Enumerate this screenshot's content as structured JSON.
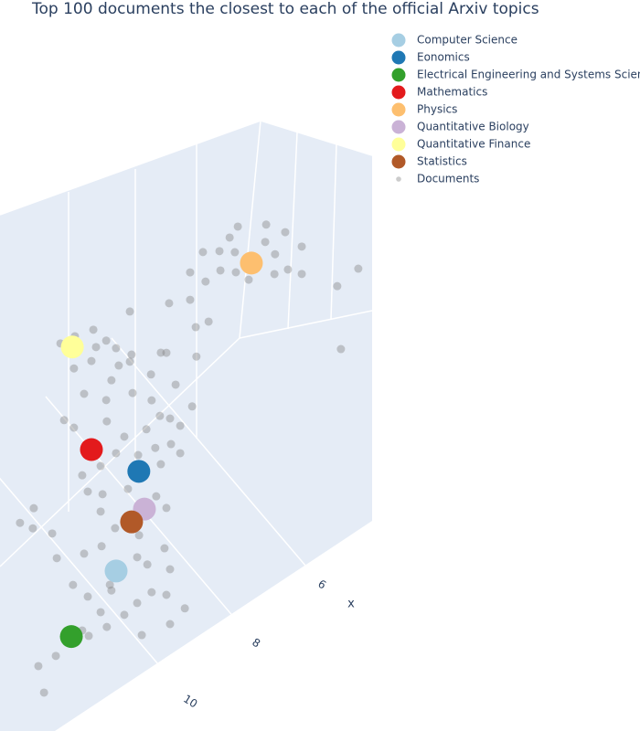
{
  "chart_data": {
    "type": "scatter3d",
    "title": "Top 100 documents the closest to each of the official Arxiv topics",
    "xlabel": "x",
    "xticks": [
      6,
      8,
      10
    ],
    "legend": "top-right",
    "series": [
      {
        "name": "Computer Science",
        "color": "#a6cee3",
        "x": [
          12.25
        ],
        "y": [
          0
        ],
        "z": [
          7.17
        ]
      },
      {
        "name": "Eonomics",
        "color": "#1f78b4",
        "x": [
          11.56
        ],
        "y": [
          0
        ],
        "z": [
          10.07
        ]
      },
      {
        "name": "Electrical Engineering and Systems Science",
        "color": "#33a02c",
        "x": [
          13.61
        ],
        "y": [
          0
        ],
        "z": [
          6.23
        ]
      },
      {
        "name": "Mathematics",
        "color": "#e31a1c",
        "x": [
          13.0
        ],
        "y": [
          0
        ],
        "z": [
          12.4
        ]
      },
      {
        "name": "Physics",
        "color": "#fdbf6f",
        "x": [
          8.14
        ],
        "y": [
          0
        ],
        "z": [
          14.02
        ]
      },
      {
        "name": "Quantitative Biology",
        "color": "#cab2d6",
        "x": [
          11.39
        ],
        "y": [
          0
        ],
        "z": [
          8.51
        ]
      },
      {
        "name": "Quantitative Finance",
        "color": "#ffff99",
        "x": [
          13.58
        ],
        "y": [
          0
        ],
        "z": [
          16.76
        ]
      },
      {
        "name": "Statistics",
        "color": "#b15928",
        "x": [
          11.78
        ],
        "y": [
          0
        ],
        "z": [
          8.46
        ]
      },
      {
        "name": "Documents",
        "color": "#808080",
        "x": [
          9.11,
          8.69,
          8.33,
          7.72,
          7.31,
          6.89,
          6.61,
          8.5,
          8.0,
          7.44,
          8.97,
          9.39,
          7.03,
          9.89,
          9.31,
          6.61,
          7.58,
          8.42,
          10.64,
          9.89,
          11.61,
          9.44,
          9.72,
          10.5,
          9.81,
          5.42,
          4.67,
          5.42,
          13.83,
          13.28,
          12.86,
          12.44,
          12.03,
          13.0,
          13.42,
          12.72,
          12.17,
          11.67,
          11.61,
          11.19,
          10.78,
          12.17,
          11.75,
          11.06,
          10.22,
          9.94,
          12.44,
          13.0,
          10.92,
          10.5,
          10.08,
          11.33,
          11.89,
          12.31,
          13.83,
          13.42,
          10.36,
          11.06,
          11.47,
          12.03,
          12.72,
          10.78,
          10.08,
          13.28,
          13.0,
          12.44,
          11.89,
          10.92,
          10.5,
          12.72,
          12.17,
          11.33,
          10.78,
          12.58,
          13.0,
          11.61,
          10.5,
          13.83,
          12.44,
          11.19,
          14.53,
          15.17,
          14.67,
          13.97,
          13.56,
          13.0,
          12.17,
          11.61,
          11.06,
          10.5,
          12.72,
          11.89,
          12.31,
          13.28,
          10.5,
          9.94,
          11.47,
          13.97,
          14.39,
          14.44,
          13.56,
          12.86
        ],
        "y": [
          0,
          0.5,
          1,
          0,
          0.5,
          1,
          0,
          0.5,
          1,
          0,
          0.5,
          1,
          0,
          0.5,
          1,
          0,
          0.5,
          1,
          0,
          0.5,
          1,
          0,
          0.5,
          1,
          0,
          0.5,
          1,
          0,
          0.5,
          1,
          0,
          0.5,
          1,
          0,
          0.5,
          1,
          0,
          0.5,
          1,
          0,
          0.5,
          1,
          0,
          0.5,
          1,
          0,
          0.5,
          1,
          0,
          0.5,
          1,
          0,
          0.5,
          1,
          0,
          0.5,
          1,
          0,
          0.5,
          1,
          0,
          0.5,
          1,
          0,
          0.5,
          1,
          0,
          0.5,
          1,
          0,
          0.5,
          1,
          0,
          0.5,
          1,
          0,
          0.5,
          1,
          0,
          0.5,
          1,
          0,
          0.5,
          1,
          0,
          0.5,
          1,
          0,
          0.5,
          1,
          0,
          0.5,
          1,
          0,
          0.5,
          1,
          0,
          0.5,
          1,
          0,
          0.5,
          1
        ],
        "z": [
          15.49,
          15.47,
          15.42,
          14.34,
          13.39,
          13.68,
          12.99,
          14.0,
          13.13,
          12.87,
          14.57,
          15.62,
          12.6,
          15.48,
          14.46,
          11.99,
          14.76,
          14.58,
          15.22,
          14.48,
          15.82,
          13.27,
          13.3,
          13.13,
          12.39,
          10.21,
          9.98,
          7.98,
          17.09,
          16.7,
          15.99,
          15.71,
          14.93,
          15.63,
          15.74,
          16.34,
          14.58,
          14.38,
          13.99,
          13.21,
          13.5,
          13.91,
          13.13,
          12.06,
          11.67,
          10.71,
          13.54,
          14.3,
          11.41,
          10.8,
          10.02,
          11.36,
          11.62,
          12.56,
          14.36,
          13.58,
          9.65,
          10.39,
          10.5,
          11.1,
          11.5,
          9.43,
          9.02,
          11.76,
          10.8,
          10.04,
          9.78,
          8.41,
          7.47,
          9.84,
          8.58,
          7.36,
          6.43,
          8.36,
          8.47,
          6.99,
          5.3,
          9.19,
          6.87,
          6.21,
          11.76,
          12.04,
          11.24,
          10.24,
          8.06,
          6.97,
          6.24,
          5.32,
          5.06,
          4.3,
          6.17,
          5.12,
          5.06,
          6.1,
          3.3,
          3.21,
          4.0,
          5.84,
          5.85,
          5.07,
          5.89,
          5.32
        ]
      }
    ]
  }
}
